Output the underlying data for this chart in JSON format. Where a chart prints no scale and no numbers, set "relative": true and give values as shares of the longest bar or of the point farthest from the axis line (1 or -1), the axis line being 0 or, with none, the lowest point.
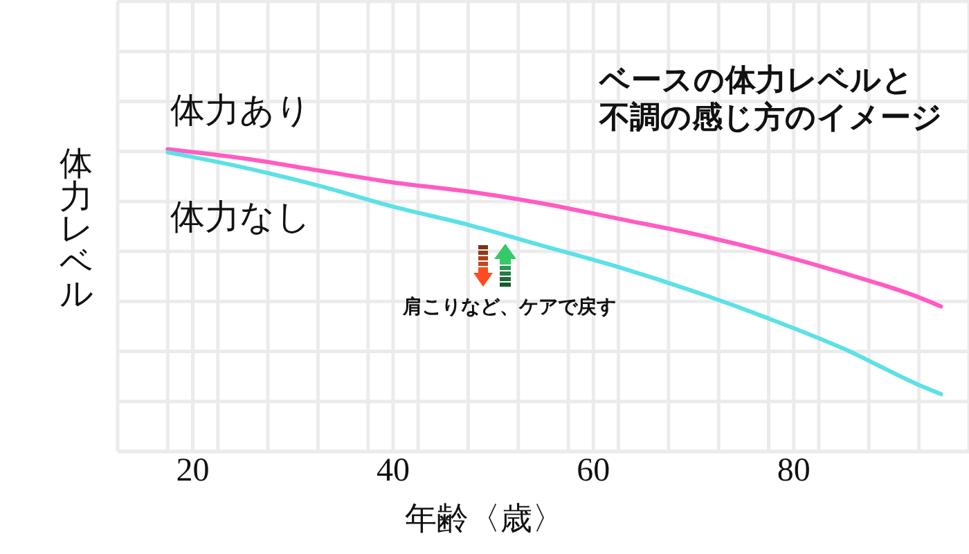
{
  "chart_data": {
    "type": "line",
    "title": "ベースの体力レベルと不調の感じ方のイメージ",
    "xlabel": "年齢〈歳〉",
    "ylabel": "体力レベル",
    "annotations": [
      "肩こりなど、ケアで戻す"
    ],
    "x": [
      17.5,
      25,
      32.5,
      40,
      47.5,
      55,
      62.5,
      70,
      77.5,
      85,
      92.5,
      94.7
    ],
    "series": [
      {
        "name": "体力あり",
        "color": "#ff5cc2",
        "values": [
          1,
          0.97,
          0.93,
          0.89,
          0.86,
          0.82,
          0.77,
          0.72,
          0.66,
          0.59,
          0.51,
          0.48
        ]
      },
      {
        "name": "体力なし",
        "color": "#5ce1e6",
        "values": [
          0.99,
          0.94,
          0.88,
          0.81,
          0.75,
          0.68,
          0.61,
          0.53,
          0.44,
          0.34,
          0.22,
          0.19
        ]
      }
    ],
    "relative": true,
    "xlim": [
      12.5,
      97.5
    ],
    "xticks": [
      {
        "value": 12.5,
        "label": null
      },
      {
        "value": 17.5,
        "label": null
      },
      20,
      {
        "value": 22.5,
        "label": null
      },
      {
        "value": 27.5,
        "label": null
      },
      {
        "value": 32.5,
        "label": null
      },
      {
        "value": 37.5,
        "label": null
      },
      40,
      {
        "value": 42.5,
        "label": null
      },
      {
        "value": 47.5,
        "label": null
      },
      {
        "value": 52.5,
        "label": null
      },
      {
        "value": 57.5,
        "label": null
      },
      60,
      {
        "value": 62.5,
        "label": null
      },
      {
        "value": 67.5,
        "label": null
      },
      {
        "value": 72.5,
        "label": null
      },
      {
        "value": 77.5,
        "label": null
      },
      80,
      {
        "value": 82.5,
        "label": null
      },
      {
        "value": 87.5,
        "label": null
      },
      {
        "value": 92.5,
        "label": null
      }
    ],
    "grid": true,
    "marker": "none"
  }
}
